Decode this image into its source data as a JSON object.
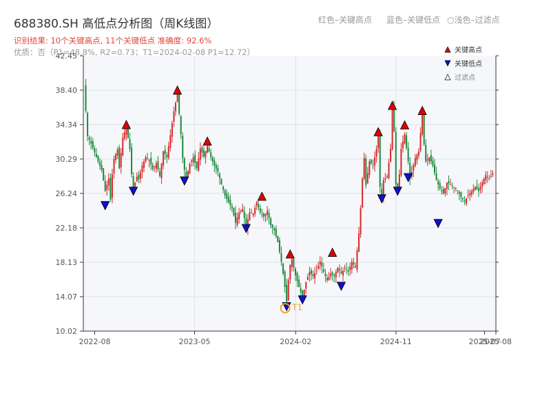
{
  "header": {
    "title": "688380.SH 高低点分析图（周K线图）",
    "legend_red": "红色–关键高点",
    "legend_blue": "蓝色–关键低点",
    "legend_filtered": "○浅色–过滤点",
    "result": "识别结果: 10个关键高点, 11个关键低点  准确度: 92.6%",
    "quality": "优质：否（P1=48.8%, R2=0.73；T1=2024-02-08 P1=12.72）"
  },
  "chart_data": {
    "type": "candlestick",
    "ylim": [
      10.02,
      42.45
    ],
    "yticks": [
      "10.02",
      "14.07",
      "18.13",
      "22.18",
      "26.24",
      "30.29",
      "34.34",
      "38.40",
      "42.45"
    ],
    "xlim": [
      "2022-07",
      "2025-08"
    ],
    "xticks": [
      {
        "label": "2022-08",
        "date": "2022-08-01"
      },
      {
        "label": "2023-05",
        "date": "2023-05-01"
      },
      {
        "label": "2024-02",
        "date": "2024-02-01"
      },
      {
        "label": "2024-11",
        "date": "2024-11-01"
      },
      {
        "label": "2025-07",
        "date": "2025-07-01"
      },
      {
        "label": "2025-08",
        "date": "2025-08-01"
      }
    ],
    "up_color": "#d62728",
    "down_color": "#1a8a3a",
    "high_color": "#e00000",
    "low_color": "#1010cc",
    "t1_color": "#f0a030",
    "legend": [
      {
        "label": "关键高点",
        "marker": "triangle-up",
        "color": "#e00000"
      },
      {
        "label": "关键低点",
        "marker": "triangle-down",
        "color": "#1010cc"
      },
      {
        "label": "过滤点",
        "marker": "triangle-hollow",
        "color": "#888888"
      }
    ],
    "closes": [
      [
        0,
        38.9
      ],
      [
        2,
        33.0
      ],
      [
        4,
        32.1
      ],
      [
        8,
        30.0
      ],
      [
        10,
        29.0
      ],
      [
        12,
        26.5
      ],
      [
        14,
        28.0
      ],
      [
        15,
        25.5
      ],
      [
        16,
        28.5
      ],
      [
        17,
        30.3
      ],
      [
        19,
        31.4
      ],
      [
        20,
        29.2
      ],
      [
        22,
        32.8
      ],
      [
        24,
        34.0
      ],
      [
        26,
        31.5
      ],
      [
        27,
        28.5
      ],
      [
        28,
        26.8
      ],
      [
        29,
        27.5
      ],
      [
        30,
        28.2
      ],
      [
        31,
        27.9
      ],
      [
        33,
        29.5
      ],
      [
        35,
        30.5
      ],
      [
        37,
        30.2
      ],
      [
        39,
        29.1
      ],
      [
        41,
        29.8
      ],
      [
        43,
        28.3
      ],
      [
        45,
        31.2
      ],
      [
        47,
        30.5
      ],
      [
        49,
        33.1
      ],
      [
        51,
        35.9
      ],
      [
        53,
        37.9
      ],
      [
        54,
        35.6
      ],
      [
        55,
        33.2
      ],
      [
        56,
        30.4
      ],
      [
        57,
        29.0
      ],
      [
        58,
        28.0
      ],
      [
        60,
        29.7
      ],
      [
        62,
        30.5
      ],
      [
        64,
        29.2
      ],
      [
        66,
        31.5
      ],
      [
        68,
        30.6
      ],
      [
        70,
        31.8
      ],
      [
        72,
        30.5
      ],
      [
        74,
        29.5
      ],
      [
        76,
        28.8
      ],
      [
        78,
        27.3
      ],
      [
        80,
        26.0
      ],
      [
        82,
        25.2
      ],
      [
        84,
        24.5
      ],
      [
        86,
        22.8
      ],
      [
        88,
        24.0
      ],
      [
        90,
        24.4
      ],
      [
        92,
        22.3
      ],
      [
        94,
        24.0
      ],
      [
        96,
        23.9
      ],
      [
        98,
        25.2
      ],
      [
        100,
        24.0
      ],
      [
        102,
        23.5
      ],
      [
        104,
        24.2
      ],
      [
        106,
        22.5
      ],
      [
        108,
        21.9
      ],
      [
        110,
        20.5
      ],
      [
        112,
        18.2
      ],
      [
        113,
        16.8
      ],
      [
        114,
        15.2
      ],
      [
        115,
        13.5
      ],
      [
        116,
        16.0
      ],
      [
        117,
        17.8
      ],
      [
        118,
        18.5
      ],
      [
        119,
        17.5
      ],
      [
        120,
        16.6
      ],
      [
        122,
        15.2
      ],
      [
        124,
        14.0
      ],
      [
        126,
        15.8
      ],
      [
        128,
        17.0
      ],
      [
        130,
        16.5
      ],
      [
        132,
        17.2
      ],
      [
        134,
        18.2
      ],
      [
        136,
        17.0
      ],
      [
        138,
        16.0
      ],
      [
        140,
        16.8
      ],
      [
        142,
        16.5
      ],
      [
        144,
        17.5
      ],
      [
        146,
        16.8
      ],
      [
        148,
        17.5
      ],
      [
        150,
        17.0
      ],
      [
        152,
        18.2
      ],
      [
        154,
        17.5
      ],
      [
        156,
        21.5
      ],
      [
        157,
        24.5
      ],
      [
        158,
        28.0
      ],
      [
        159,
        30.4
      ],
      [
        160,
        27.2
      ],
      [
        162,
        30.0
      ],
      [
        164,
        29.5
      ],
      [
        166,
        31.5
      ],
      [
        167,
        33.0
      ],
      [
        168,
        27.0
      ],
      [
        169,
        25.8
      ],
      [
        170,
        27.8
      ],
      [
        172,
        28.2
      ],
      [
        174,
        31.5
      ],
      [
        175,
        36.2
      ],
      [
        176,
        33.5
      ],
      [
        177,
        27.3
      ],
      [
        178,
        26.8
      ],
      [
        179,
        28.5
      ],
      [
        180,
        31.5
      ],
      [
        182,
        33.2
      ],
      [
        184,
        30.0
      ],
      [
        185,
        28.0
      ],
      [
        186,
        28.8
      ],
      [
        188,
        30.4
      ],
      [
        190,
        31.2
      ],
      [
        192,
        35.5
      ],
      [
        193,
        32.0
      ],
      [
        194,
        30.0
      ],
      [
        196,
        30.5
      ],
      [
        198,
        29.5
      ],
      [
        200,
        27.8
      ],
      [
        202,
        26.8
      ],
      [
        204,
        26.2
      ],
      [
        206,
        27.5
      ],
      [
        208,
        27.3
      ],
      [
        210,
        27.0
      ],
      [
        212,
        26.6
      ],
      [
        214,
        25.8
      ],
      [
        216,
        25.3
      ],
      [
        218,
        26.0
      ],
      [
        220,
        26.5
      ],
      [
        222,
        27.0
      ],
      [
        224,
        26.5
      ],
      [
        226,
        27.5
      ],
      [
        228,
        28.4
      ],
      [
        230,
        28.0
      ],
      [
        232,
        28.6
      ]
    ],
    "key_highs": [
      {
        "i": 24,
        "price": 34.34
      },
      {
        "i": 53,
        "price": 38.4
      },
      {
        "i": 70,
        "price": 32.4
      },
      {
        "i": 101,
        "price": 25.9
      },
      {
        "i": 117,
        "price": 19.1
      },
      {
        "i": 141,
        "price": 19.3
      },
      {
        "i": 167,
        "price": 33.5
      },
      {
        "i": 175,
        "price": 36.6
      },
      {
        "i": 182,
        "price": 34.3
      },
      {
        "i": 192,
        "price": 36.0
      }
    ],
    "key_lows": [
      {
        "i": 12,
        "price": 24.8
      },
      {
        "i": 28,
        "price": 26.5
      },
      {
        "i": 57,
        "price": 27.7
      },
      {
        "i": 92,
        "price": 22.1
      },
      {
        "i": 115,
        "price": 12.9
      },
      {
        "i": 124,
        "price": 13.7
      },
      {
        "i": 146,
        "price": 15.3
      },
      {
        "i": 169,
        "price": 25.6
      },
      {
        "i": 178,
        "price": 26.5
      },
      {
        "i": 184,
        "price": 28.1
      },
      {
        "i": 201,
        "price": 22.7
      }
    ],
    "t1": {
      "i": 115,
      "price": 12.72,
      "label": "T1",
      "date": "2024-02-08"
    }
  }
}
